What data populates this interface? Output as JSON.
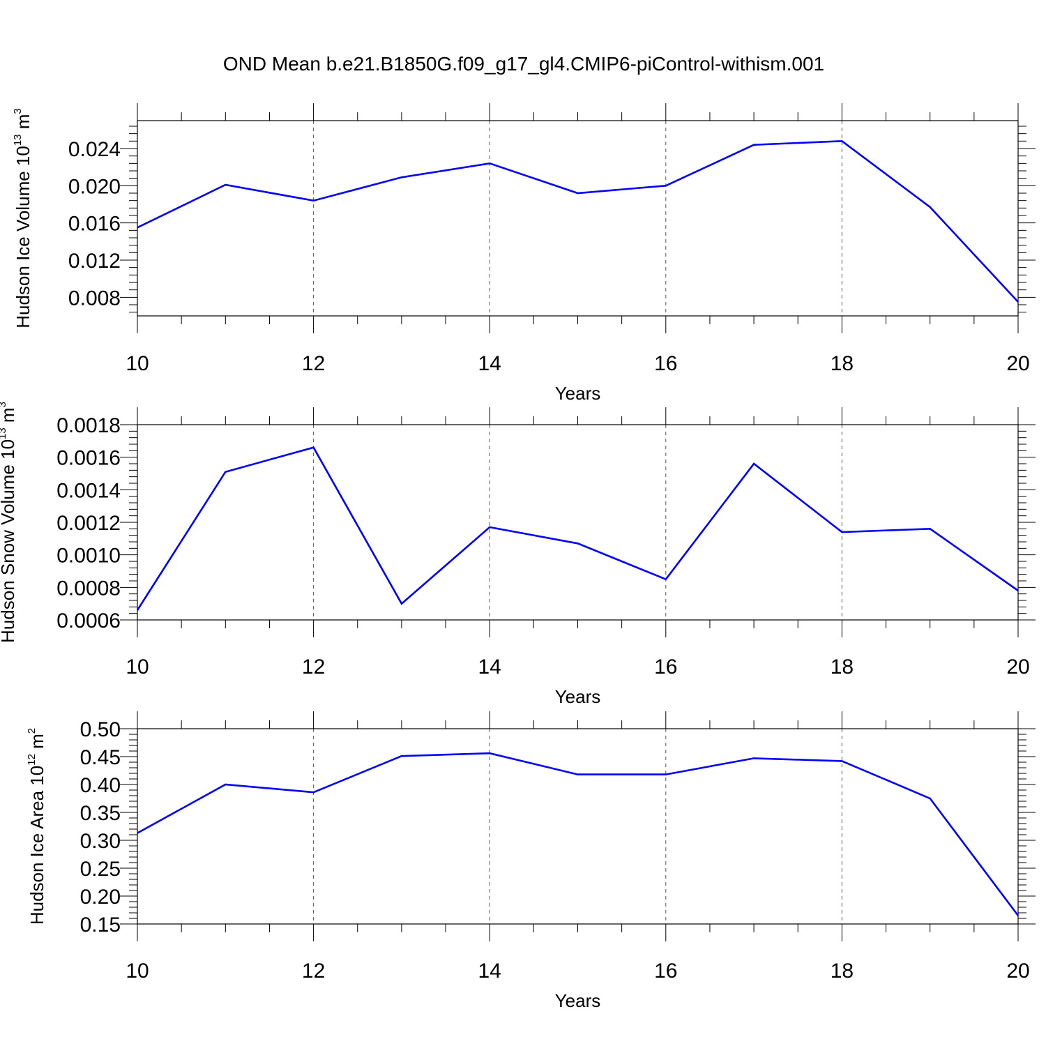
{
  "figure": {
    "title": "OND Mean b.e21.B1850G.f09_g17_gl4.CMIP6-piControl-withism.001"
  },
  "chart_data": [
    {
      "type": "line",
      "xlabel": "Years",
      "ylabel_parts": [
        "Hudson Ice Volume 10",
        "13",
        " m",
        "3"
      ],
      "xlim": [
        10,
        20
      ],
      "ylim": [
        0.006,
        0.027
      ],
      "xticks": [
        10,
        12,
        14,
        16,
        18,
        20
      ],
      "xtick_labels": [
        "10",
        "12",
        "14",
        "16",
        "18",
        "20"
      ],
      "yticks": [
        0.008,
        0.012,
        0.016,
        0.02,
        0.024
      ],
      "ytick_labels": [
        "0.008",
        "0.012",
        "0.016",
        "0.020",
        "0.024"
      ],
      "grid": "vertical dashed at major x ticks",
      "line_color": "#0000ff",
      "x": [
        10,
        11,
        12,
        13,
        14,
        15,
        16,
        17,
        18,
        19,
        20
      ],
      "values": [
        0.0155,
        0.0201,
        0.0184,
        0.0209,
        0.0224,
        0.0192,
        0.02,
        0.0244,
        0.0248,
        0.0177,
        0.0075
      ]
    },
    {
      "type": "line",
      "xlabel": "Years",
      "ylabel_parts": [
        "Hudson Snow Volume 10",
        "13",
        " m",
        "3"
      ],
      "xlim": [
        10,
        20
      ],
      "ylim": [
        0.0006,
        0.0018
      ],
      "xticks": [
        10,
        12,
        14,
        16,
        18,
        20
      ],
      "xtick_labels": [
        "10",
        "12",
        "14",
        "16",
        "18",
        "20"
      ],
      "yticks": [
        0.0006,
        0.0008,
        0.001,
        0.0012,
        0.0014,
        0.0016,
        0.0018
      ],
      "ytick_labels": [
        "0.0006",
        "0.0008",
        "0.0010",
        "0.0012",
        "0.0014",
        "0.0016",
        "0.0018"
      ],
      "grid": "vertical dashed at major x ticks",
      "line_color": "#0000ff",
      "x": [
        10,
        11,
        12,
        13,
        14,
        15,
        16,
        17,
        18,
        19,
        20
      ],
      "values": [
        0.00066,
        0.00151,
        0.00166,
        0.0007,
        0.00117,
        0.00107,
        0.00085,
        0.00156,
        0.00114,
        0.00116,
        0.00078
      ]
    },
    {
      "type": "line",
      "xlabel": "Years",
      "ylabel_parts": [
        "Hudson Ice Area 10",
        "12",
        " m",
        "2"
      ],
      "xlim": [
        10,
        20
      ],
      "ylim": [
        0.15,
        0.5
      ],
      "xticks": [
        10,
        12,
        14,
        16,
        18,
        20
      ],
      "xtick_labels": [
        "10",
        "12",
        "14",
        "16",
        "18",
        "20"
      ],
      "yticks": [
        0.15,
        0.2,
        0.25,
        0.3,
        0.35,
        0.4,
        0.45,
        0.5
      ],
      "ytick_labels": [
        "0.15",
        "0.20",
        "0.25",
        "0.30",
        "0.35",
        "0.40",
        "0.45",
        "0.50"
      ],
      "grid": "vertical dashed at major x ticks",
      "line_color": "#0000ff",
      "x": [
        10,
        11,
        12,
        13,
        14,
        15,
        16,
        17,
        18,
        19,
        20
      ],
      "values": [
        0.313,
        0.4,
        0.386,
        0.451,
        0.456,
        0.418,
        0.418,
        0.447,
        0.442,
        0.375,
        0.165
      ]
    }
  ]
}
